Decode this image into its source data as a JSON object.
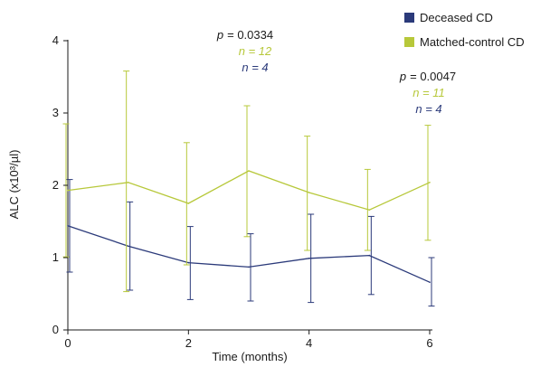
{
  "chart_data": {
    "type": "line",
    "xlabel": "Time (months)",
    "ylabel": "ALC (x10³/µl)",
    "xlim": [
      0,
      6
    ],
    "ylim": [
      0,
      4
    ],
    "xticks": [
      "0",
      "2",
      "4",
      "6"
    ],
    "yticks": [
      "0",
      "1",
      "2",
      "3",
      "4"
    ],
    "legend_position": "top-right",
    "x": [
      0,
      1,
      2,
      3,
      4,
      5,
      6
    ],
    "series": [
      {
        "name": "Deceased CD",
        "color": "#2b3a7a",
        "values": [
          1.44,
          1.16,
          0.93,
          0.87,
          0.99,
          1.03,
          0.66
        ],
        "error_upper": [
          2.08,
          1.77,
          1.43,
          1.33,
          1.6,
          1.57,
          1.0
        ],
        "error_lower": [
          0.8,
          0.55,
          0.42,
          0.4,
          0.38,
          0.49,
          0.33
        ]
      },
      {
        "name": "Matched-control CD",
        "color": "#b7c83a",
        "values": [
          1.93,
          2.04,
          1.75,
          2.2,
          1.9,
          1.66,
          2.04
        ],
        "error_upper": [
          2.85,
          3.58,
          2.59,
          3.1,
          2.68,
          2.22,
          2.83
        ],
        "error_lower": [
          1.01,
          0.53,
          0.9,
          1.29,
          1.1,
          1.1,
          1.24
        ]
      }
    ],
    "annotations": [
      {
        "p": "p",
        "p_value": "= 0.0334",
        "n_control": "n = 12",
        "n_deceased": "n = 4"
      },
      {
        "p": "p",
        "p_value": "= 0.0047",
        "n_control": "n = 11",
        "n_deceased": "n = 4"
      }
    ]
  }
}
